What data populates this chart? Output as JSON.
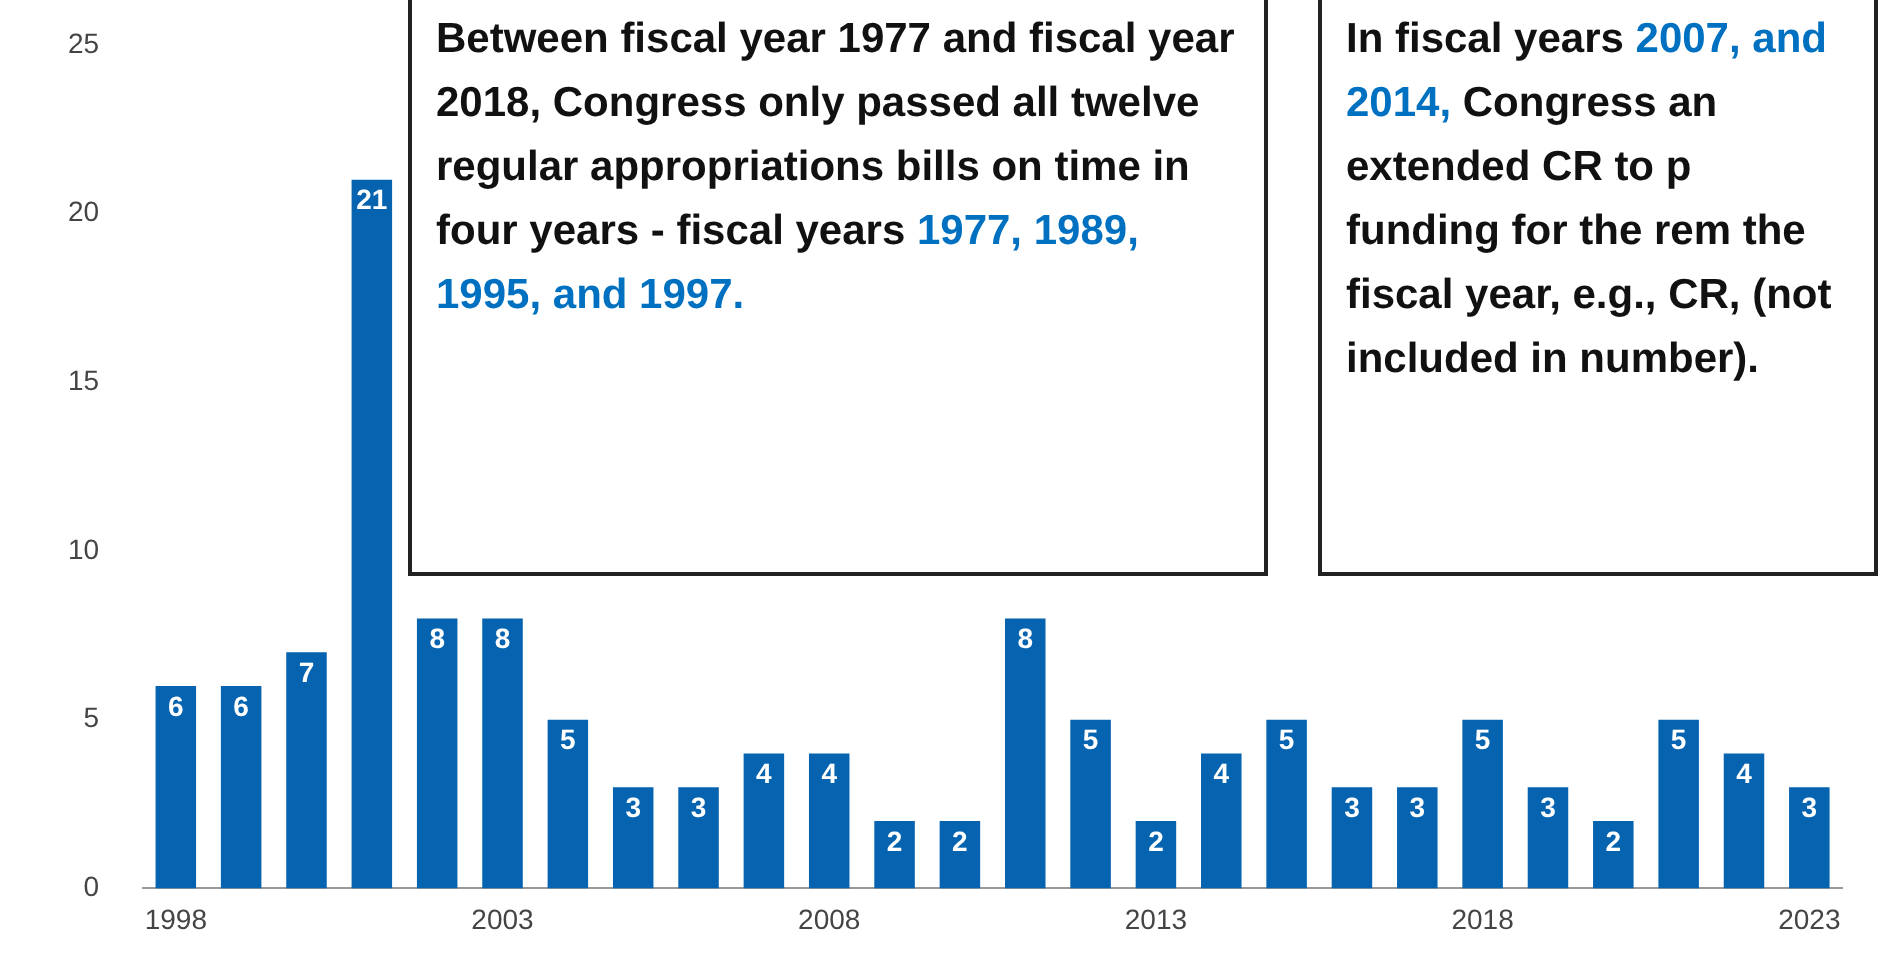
{
  "chart_data": {
    "type": "bar",
    "categories": [
      "1998",
      null,
      null,
      null,
      null,
      "2003",
      null,
      null,
      null,
      null,
      "2008",
      null,
      null,
      null,
      null,
      "2013",
      null,
      null,
      null,
      null,
      "2018",
      null,
      null,
      null,
      null,
      "2023"
    ],
    "values": [
      6,
      6,
      7,
      21,
      8,
      8,
      5,
      3,
      3,
      4,
      4,
      2,
      2,
      8,
      5,
      2,
      4,
      5,
      3,
      3,
      5,
      3,
      2,
      5,
      4,
      3
    ],
    "color": "#0563b0",
    "ylim": [
      0,
      25
    ],
    "yticks": [
      0,
      5,
      10,
      15,
      20,
      25
    ],
    "grid": false,
    "legend": false,
    "data_labels": true,
    "annotations": [
      "Between fiscal year 1977 and fiscal year 2018, Congress only passed all twelve regular appropriations bills on time in four years - fiscal years",
      "1977, 1989, 1995, and 1997.",
      "In fiscal years",
      "2007, and 2014,",
      "Congress an extended CR to p funding for the rem the fiscal year, e.g., CR, (not included in number)."
    ]
  }
}
